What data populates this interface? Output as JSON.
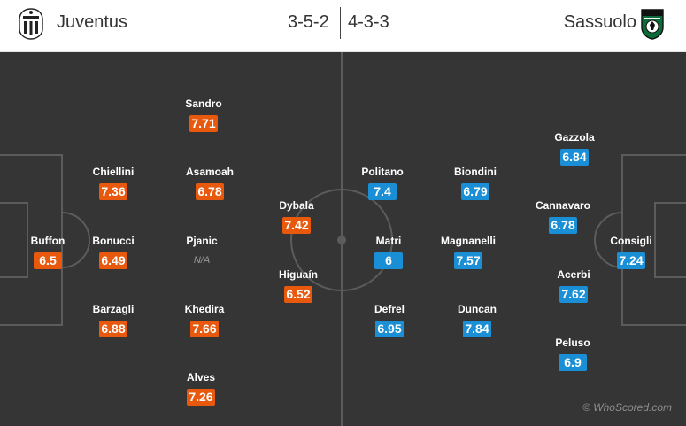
{
  "header": {
    "home_team": "Juventus",
    "away_team": "Sassuolo",
    "home_formation": "3-5-2",
    "away_formation": "4-3-3",
    "home_crest_icon": "juventus-crest-icon",
    "away_crest_icon": "sassuolo-crest-icon"
  },
  "colors": {
    "home_rating_bg": "#e8580d",
    "away_rating_bg": "#1b8fd6",
    "pitch_bg": "#353535",
    "pitch_lines": "#5c5c5c"
  },
  "home_players": [
    {
      "name": "Sandro",
      "rating": "7.71"
    },
    {
      "name": "Chiellini",
      "rating": "7.36"
    },
    {
      "name": "Asamoah",
      "rating": "6.78"
    },
    {
      "name": "Dybala",
      "rating": "7.42"
    },
    {
      "name": "Buffon",
      "rating": "6.5"
    },
    {
      "name": "Bonucci",
      "rating": "6.49"
    },
    {
      "name": "Pjanic",
      "rating": "N/A"
    },
    {
      "name": "Higuaín",
      "rating": "6.52"
    },
    {
      "name": "Barzagli",
      "rating": "6.88"
    },
    {
      "name": "Khedira",
      "rating": "7.66"
    },
    {
      "name": "Alves",
      "rating": "7.26"
    }
  ],
  "away_players": [
    {
      "name": "Gazzola",
      "rating": "6.84"
    },
    {
      "name": "Politano",
      "rating": "7.4"
    },
    {
      "name": "Biondini",
      "rating": "6.79"
    },
    {
      "name": "Cannavaro",
      "rating": "6.78"
    },
    {
      "name": "Matri",
      "rating": "6"
    },
    {
      "name": "Magnanelli",
      "rating": "7.57"
    },
    {
      "name": "Consigli",
      "rating": "7.24"
    },
    {
      "name": "Acerbi",
      "rating": "7.62"
    },
    {
      "name": "Defrel",
      "rating": "6.95"
    },
    {
      "name": "Duncan",
      "rating": "7.84"
    },
    {
      "name": "Peluso",
      "rating": "6.9"
    }
  ],
  "watermark": "© WhoScored.com"
}
